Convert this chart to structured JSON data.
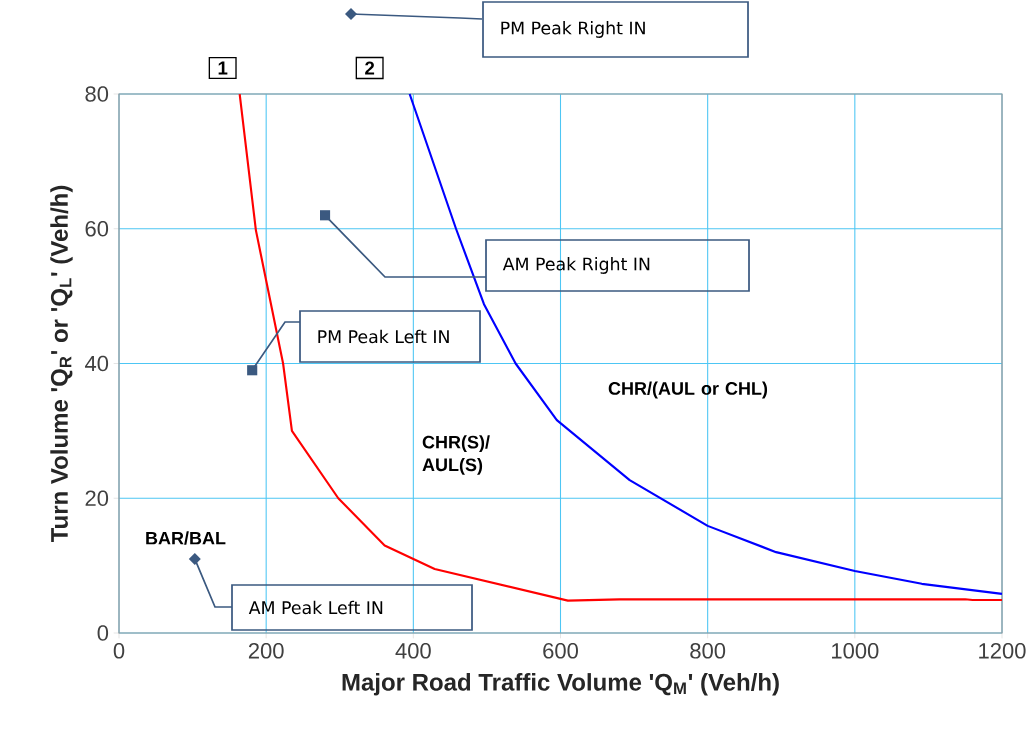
{
  "chart_data": {
    "type": "line",
    "xlabel": "Major Road Traffic Volume 'Q$_{M}$' (Veh/h)",
    "ylabel": "Turn Volume 'Q$_{R}$' or 'Q$_{L}$' (Veh/h)",
    "xlim": [
      0,
      1200
    ],
    "ylim": [
      0,
      80
    ],
    "xticks": [
      0,
      200,
      400,
      600,
      800,
      1000,
      1200
    ],
    "yticks": [
      0,
      20,
      40,
      60,
      80
    ],
    "grid": true,
    "marker": "none",
    "line_style": "solid",
    "series": [
      {
        "name": "1",
        "color": "#ff0000",
        "x": [
          164,
          186,
          223,
          235,
          298,
          361,
          429,
          610,
          680,
          1150,
          1160,
          1200
        ],
        "values": [
          80,
          59.8,
          40,
          30,
          20,
          13,
          9.5,
          4.8,
          5,
          5,
          4.9,
          4.9
        ]
      },
      {
        "name": "2",
        "color": "#0000ff",
        "x": [
          395,
          458,
          496,
          539,
          595,
          694,
          800,
          893,
          1000,
          1091,
          1200
        ],
        "values": [
          80,
          60,
          48.8,
          40,
          31.6,
          22.7,
          15.9,
          12,
          9.2,
          7.3,
          5.8
        ]
      }
    ],
    "annotations": [
      "PM Peak Right IN",
      {
        "text": "AM Peak Right IN",
        "x": 280,
        "y": 62
      },
      {
        "text": "PM Peak Left IN",
        "x": 181,
        "y": 39
      },
      {
        "text": "AM Peak Left IN",
        "x": 103,
        "y": 11
      },
      "BAR/BAL",
      "CHR(S)/ AUL(S)",
      "CHR/(AUL or CHL)"
    ]
  }
}
